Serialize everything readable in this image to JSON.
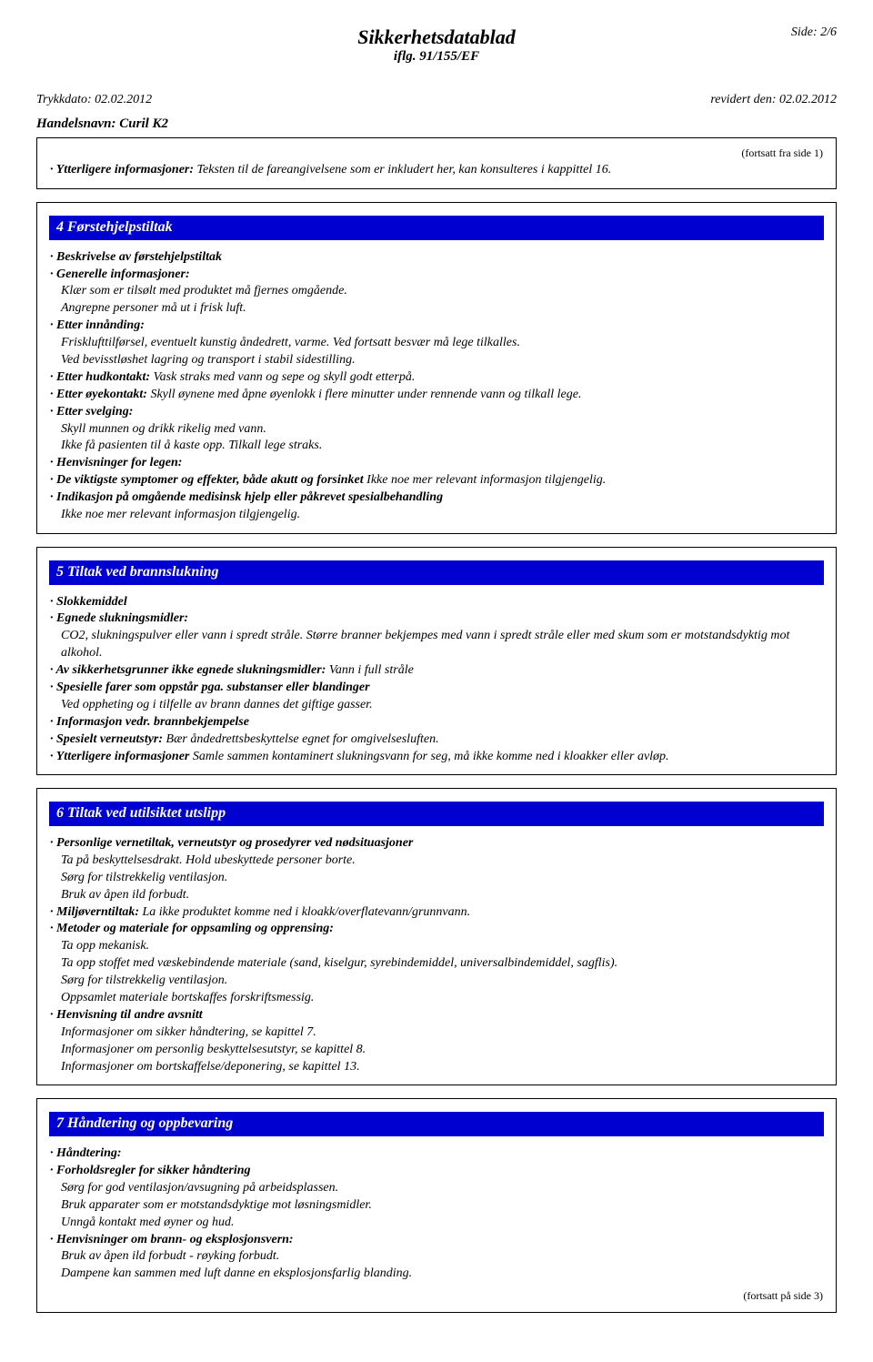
{
  "header": {
    "page_num": "Side: 2/6",
    "title": "Sikkerhetsdatablad",
    "subtitle": "iflg. 91/155/EF",
    "print_label": "Trykkdato: 02.02.2012",
    "revised_label": "revidert den: 02.02.2012",
    "product": "Handelsnavn: Curil K2"
  },
  "intro": {
    "cont_from": "(fortsatt fra side 1)",
    "info_label": "· Ytterligere informasjoner:",
    "info_text": " Teksten til de fareangivelsene som er inkludert her, kan konsulteres i kappittel 16."
  },
  "sec4": {
    "title": "4 Førstehjelpstiltak",
    "l1": "· Beskrivelse av førstehjelpstiltak",
    "l2": "· Generelle informasjoner:",
    "l3": "Klær som er tilsølt med produktet må fjernes omgående.",
    "l4": "Angrepne personer må ut i frisk luft.",
    "l5": "· Etter innånding:",
    "l6": "Frisklufttilførsel, eventuelt kunstig åndedrett, varme. Ved fortsatt besvær må lege tilkalles.",
    "l7": "Ved bevisstløshet lagring og transport i stabil sidestilling.",
    "l8a": "· Etter hudkontakt:",
    "l8b": " Vask straks med vann og sepe og skyll godt etterpå.",
    "l9a": "· Etter øyekontakt:",
    "l9b": " Skyll øynene med åpne øyenlokk i flere minutter under rennende vann og tilkall lege.",
    "l10": "· Etter svelging:",
    "l11": "Skyll munnen og drikk rikelig med vann.",
    "l12": "Ikke få pasienten til å kaste opp. Tilkall lege straks.",
    "l13": "· Henvisninger for legen:",
    "l14a": "· De viktigste symptomer og effekter, både akutt og forsinket",
    "l14b": " Ikke noe mer relevant informasjon tilgjengelig.",
    "l15": "· Indikasjon på omgående medisinsk hjelp eller påkrevet spesialbehandling",
    "l16": "Ikke noe mer relevant informasjon tilgjengelig."
  },
  "sec5": {
    "title": "5 Tiltak ved brannslukning",
    "l1": "· Slokkemiddel",
    "l2": "· Egnede slukningsmidler:",
    "l3": "CO2, slukningspulver eller vann i spredt stråle. Større branner bekjempes med vann i spredt stråle eller med skum som er motstandsdyktig mot alkohol.",
    "l4a": "· Av sikkerhetsgrunner ikke egnede slukningsmidler:",
    "l4b": " Vann i full stråle",
    "l5": "· Spesielle farer som oppstår pga. substanser eller blandinger",
    "l6": "Ved oppheting og i tilfelle av brann dannes det giftige gasser.",
    "l7": "· Informasjon vedr. brannbekjempelse",
    "l8a": "· Spesielt verneutstyr:",
    "l8b": " Bær åndedrettsbeskyttelse egnet for omgivelsesluften.",
    "l9a": "· Ytterligere informasjoner",
    "l9b": " Samle sammen kontaminert slukningsvann for seg, må ikke komme ned i kloakker eller avløp."
  },
  "sec6": {
    "title": "6 Tiltak ved utilsiktet utslipp",
    "l1": "· Personlige vernetiltak, verneutstyr og prosedyrer ved nødsituasjoner",
    "l2": "Ta på beskyttelsesdrakt. Hold ubeskyttede personer borte.",
    "l3": "Sørg for tilstrekkelig ventilasjon.",
    "l4": "Bruk av åpen ild forbudt.",
    "l5a": "· Miljøverntiltak:",
    "l5b": " La ikke produktet komme ned i kloakk/overflatevann/grunnvann.",
    "l6": "· Metoder og materiale for oppsamling og opprensing:",
    "l7": "Ta opp mekanisk.",
    "l8": "Ta opp stoffet med væskebindende materiale (sand, kiselgur, syrebindemiddel, universalbindemiddel, sagflis).",
    "l9": "Sørg for tilstrekkelig ventilasjon.",
    "l10": "Oppsamlet materiale bortskaffes forskriftsmessig.",
    "l11": "· Henvisning til andre avsnitt",
    "l12": "Informasjoner om sikker håndtering, se kapittel 7.",
    "l13": "Informasjoner om personlig beskyttelsesutstyr, se kapittel 8.",
    "l14": "Informasjoner om bortskaffelse/deponering, se kapittel 13."
  },
  "sec7": {
    "title": "7 Håndtering og oppbevaring",
    "l1": "· Håndtering:",
    "l2": "· Forholdsregler for sikker håndtering",
    "l3": "Sørg for god ventilasjon/avsugning på arbeidsplassen.",
    "l4": "Bruk apparater som er motstandsdyktige mot løsningsmidler.",
    "l5": "Unngå kontakt med øyner og hud.",
    "l6": "· Henvisninger om brann- og eksplosjonsvern:",
    "l7": "Bruk av åpen ild forbudt - røyking forbudt.",
    "l8": "Dampene kan sammen med luft danne en eksplosjonsfarlig blanding.",
    "cont_to": "(fortsatt på side 3)"
  }
}
